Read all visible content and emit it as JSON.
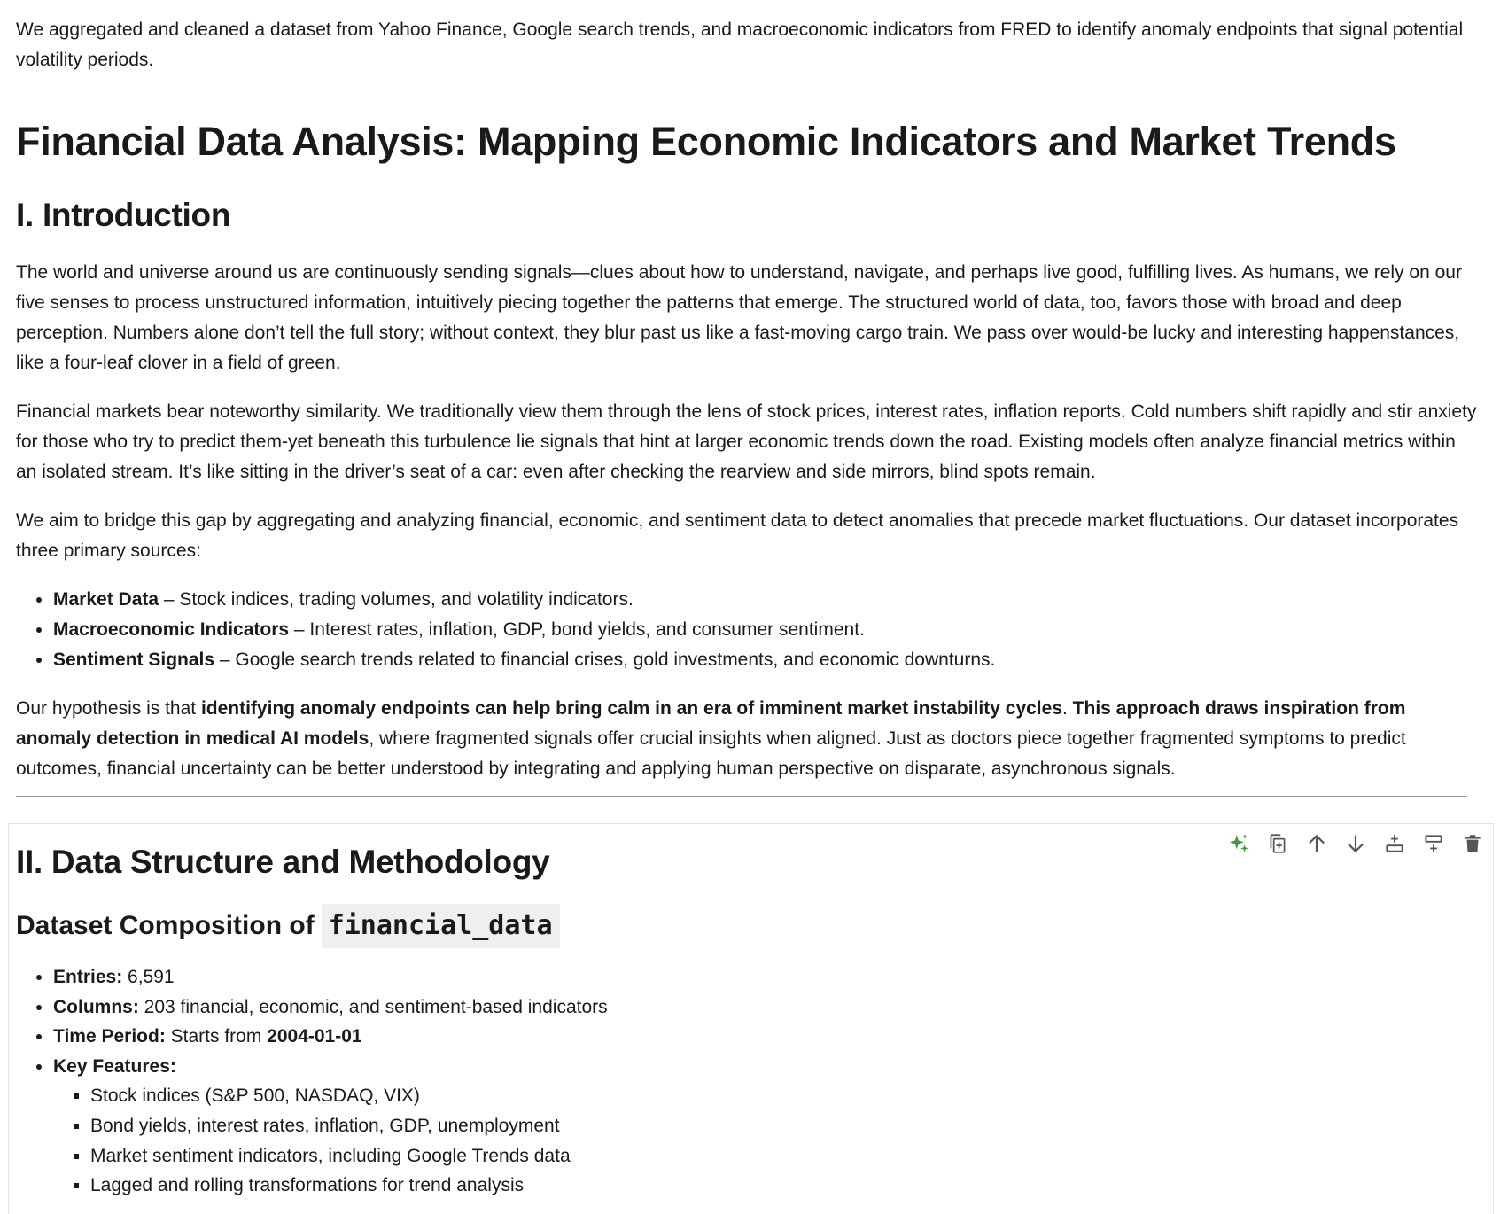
{
  "intro_note": "We aggregated and cleaned a dataset from Yahoo Finance, Google search trends, and macroeconomic indicators from FRED to identify anomaly endpoints that signal potential volatility periods.",
  "title": "Financial Data Analysis: Mapping Economic Indicators and Market Trends",
  "section1": {
    "heading": "I. Introduction",
    "p1": "The world and universe around us are continuously sending signals—clues about how to understand, navigate, and perhaps live good, fulfilling lives. As humans, we rely on our five senses to process unstructured information, intuitively piecing together the patterns that emerge. The structured world of data, too, favors those with broad and deep perception. Numbers alone don’t tell the full story; without context, they blur past us like a fast-moving cargo train. We pass over would-be lucky and interesting happenstances, like a four-leaf clover in a field of green.",
    "p2": "Financial markets bear noteworthy similarity. We traditionally view them through the lens of stock prices, interest rates, inflation reports. Cold numbers shift rapidly and stir anxiety for those who try to predict them-yet beneath this turbulence lie signals that hint at larger economic trends down the road. Existing models often analyze financial metrics within an isolated stream. It’s like sitting in the driver’s seat of a car: even after checking the rearview and side mirrors, blind spots remain.",
    "p3": "We aim to bridge this gap by aggregating and analyzing financial, economic, and sentiment data to detect anomalies that precede market fluctuations. Our dataset incorporates three primary sources:",
    "bullets": [
      {
        "bold": "Market Data",
        "text": " – Stock indices, trading volumes, and volatility indicators."
      },
      {
        "bold": "Macroeconomic Indicators",
        "text": " – Interest rates, inflation, GDP, bond yields, and consumer sentiment."
      },
      {
        "bold": "Sentiment Signals",
        "text": " – Google search trends related to financial crises, gold investments, and economic downturns."
      }
    ],
    "p4_start": "Our hypothesis is that ",
    "p4_bold1": "identifying anomaly endpoints can help bring calm in an era of imminent market instability cycles",
    "p4_mid": ". ",
    "p4_bold2": "This approach draws inspiration from anomaly detection in medical AI models",
    "p4_end": ", where fragmented signals offer crucial insights when aligned. Just as doctors piece together fragmented symptoms to predict outcomes, financial uncertainty can be better understood by integrating and applying human perspective on disparate, asynchronous signals."
  },
  "section2": {
    "heading": "II. Data Structure and Methodology",
    "subheading": "Dataset Composition of",
    "subheading_code": "financial_data",
    "entries_label": "Entries:",
    "entries_value": " 6,591",
    "columns_label": "Columns:",
    "columns_value": " 203 financial, economic, and sentiment-based indicators",
    "period_label": "Time Period:",
    "period_text": " Starts from ",
    "period_value": "2004-01-01",
    "features_label": "Key Features:",
    "features": [
      "Stock indices (S&P 500, NASDAQ, VIX)",
      "Bond yields, interest rates, inflation, GDP, unemployment",
      "Market sentiment indicators, including Google Trends data",
      "Lagged and rolling transformations for trend analysis"
    ]
  },
  "toolbar_icons": [
    "sparkle-icon",
    "duplicate-icon",
    "move-up-icon",
    "move-down-icon",
    "insert-above-icon",
    "insert-below-icon",
    "delete-icon"
  ],
  "colors": {
    "sparkle": "#3f9a3a",
    "icon": "#555555",
    "rule": "#9a9a9a",
    "code_bg": "#efefef"
  }
}
